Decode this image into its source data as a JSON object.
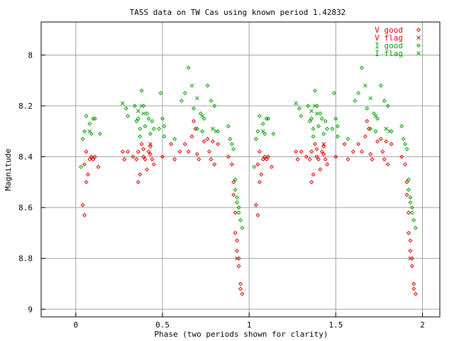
{
  "chart_data": {
    "type": "scatter",
    "title": "TASS data on TW Cas  using known period 1.42832",
    "xlabel": "Phase (two periods shown for clarity)",
    "ylabel": "Magnitude",
    "xlim": [
      -0.2,
      2.1
    ],
    "ylim": [
      7.87,
      9.03
    ],
    "y_inverted": true,
    "grid": true,
    "legend_position": "top-right",
    "x_ticks": [
      "0",
      "0.5",
      "1",
      "1.5",
      "2"
    ],
    "y_ticks": [
      "8",
      "8.2",
      "8.4",
      "8.6",
      "8.8",
      "9"
    ],
    "series": [
      {
        "name": "V good",
        "marker": "diamond",
        "color": "#e00000",
        "points": [
          [
            0.04,
            8.59
          ],
          [
            0.05,
            8.63
          ],
          [
            0.05,
            8.43
          ],
          [
            0.06,
            8.38
          ],
          [
            0.06,
            8.5
          ],
          [
            0.07,
            8.47
          ],
          [
            0.08,
            8.41
          ],
          [
            0.09,
            8.4
          ],
          [
            0.1,
            8.41
          ],
          [
            0.11,
            8.4
          ],
          [
            0.13,
            8.44
          ],
          [
            0.27,
            8.38
          ],
          [
            0.28,
            8.41
          ],
          [
            0.3,
            8.38
          ],
          [
            0.33,
            8.4
          ],
          [
            0.35,
            8.41
          ],
          [
            0.36,
            8.38
          ],
          [
            0.36,
            8.5
          ],
          [
            0.37,
            8.47
          ],
          [
            0.38,
            8.35
          ],
          [
            0.39,
            8.4
          ],
          [
            0.39,
            8.37
          ],
          [
            0.4,
            8.41
          ],
          [
            0.41,
            8.45
          ],
          [
            0.42,
            8.38
          ],
          [
            0.43,
            8.39
          ],
          [
            0.43,
            8.36
          ],
          [
            0.44,
            8.41
          ],
          [
            0.45,
            8.43
          ],
          [
            0.5,
            8.4
          ],
          [
            0.55,
            8.35
          ],
          [
            0.57,
            8.41
          ],
          [
            0.6,
            8.38
          ],
          [
            0.63,
            8.35
          ],
          [
            0.65,
            8.38
          ],
          [
            0.67,
            8.32
          ],
          [
            0.68,
            8.26
          ],
          [
            0.69,
            8.29
          ],
          [
            0.7,
            8.39
          ],
          [
            0.71,
            8.41
          ],
          [
            0.74,
            8.34
          ],
          [
            0.76,
            8.33
          ],
          [
            0.77,
            8.38
          ],
          [
            0.78,
            8.41
          ],
          [
            0.79,
            8.34
          ],
          [
            0.8,
            8.43
          ],
          [
            0.82,
            8.35
          ],
          [
            0.88,
            8.4
          ],
          [
            0.9,
            8.43
          ],
          [
            0.91,
            8.5
          ],
          [
            0.91,
            8.55
          ],
          [
            0.92,
            8.62
          ],
          [
            0.92,
            8.7
          ],
          [
            0.93,
            8.73
          ],
          [
            0.93,
            8.77
          ],
          [
            0.94,
            8.8
          ],
          [
            0.94,
            8.83
          ],
          [
            0.95,
            8.9
          ],
          [
            0.95,
            8.92
          ],
          [
            0.96,
            8.94
          ],
          [
            1.04,
            8.59
          ],
          [
            1.05,
            8.63
          ],
          [
            1.05,
            8.43
          ],
          [
            1.06,
            8.38
          ],
          [
            1.06,
            8.5
          ],
          [
            1.07,
            8.47
          ],
          [
            1.08,
            8.41
          ],
          [
            1.09,
            8.4
          ],
          [
            1.1,
            8.41
          ],
          [
            1.11,
            8.4
          ],
          [
            1.13,
            8.44
          ],
          [
            1.27,
            8.38
          ],
          [
            1.28,
            8.41
          ],
          [
            1.3,
            8.38
          ],
          [
            1.33,
            8.4
          ],
          [
            1.35,
            8.41
          ],
          [
            1.36,
            8.38
          ],
          [
            1.36,
            8.5
          ],
          [
            1.37,
            8.47
          ],
          [
            1.38,
            8.35
          ],
          [
            1.39,
            8.4
          ],
          [
            1.39,
            8.37
          ],
          [
            1.4,
            8.41
          ],
          [
            1.41,
            8.45
          ],
          [
            1.42,
            8.38
          ],
          [
            1.43,
            8.39
          ],
          [
            1.43,
            8.36
          ],
          [
            1.44,
            8.41
          ],
          [
            1.45,
            8.43
          ],
          [
            1.5,
            8.4
          ],
          [
            1.55,
            8.35
          ],
          [
            1.57,
            8.41
          ],
          [
            1.6,
            8.38
          ],
          [
            1.63,
            8.35
          ],
          [
            1.65,
            8.38
          ],
          [
            1.67,
            8.32
          ],
          [
            1.68,
            8.26
          ],
          [
            1.69,
            8.29
          ],
          [
            1.7,
            8.39
          ],
          [
            1.71,
            8.41
          ],
          [
            1.74,
            8.34
          ],
          [
            1.76,
            8.33
          ],
          [
            1.77,
            8.38
          ],
          [
            1.78,
            8.41
          ],
          [
            1.79,
            8.34
          ],
          [
            1.8,
            8.43
          ],
          [
            1.82,
            8.35
          ],
          [
            1.88,
            8.4
          ],
          [
            1.9,
            8.43
          ],
          [
            1.91,
            8.5
          ],
          [
            1.91,
            8.55
          ],
          [
            1.92,
            8.62
          ],
          [
            1.92,
            8.7
          ],
          [
            1.93,
            8.73
          ],
          [
            1.93,
            8.77
          ],
          [
            1.94,
            8.8
          ],
          [
            1.94,
            8.83
          ],
          [
            1.95,
            8.9
          ],
          [
            1.95,
            8.92
          ],
          [
            1.96,
            8.94
          ]
        ]
      },
      {
        "name": "V flag",
        "marker": "cross",
        "color": "#e00000",
        "points": [
          [
            0.43,
            8.35
          ],
          [
            0.93,
            8.8
          ],
          [
            1.43,
            8.35
          ],
          [
            1.93,
            8.8
          ]
        ]
      },
      {
        "name": "I good",
        "marker": "diamond",
        "color": "#00a000",
        "points": [
          [
            0.03,
            8.44
          ],
          [
            0.04,
            8.33
          ],
          [
            0.05,
            8.3
          ],
          [
            0.06,
            8.24
          ],
          [
            0.08,
            8.27
          ],
          [
            0.09,
            8.31
          ],
          [
            0.1,
            8.25
          ],
          [
            0.11,
            8.25
          ],
          [
            0.14,
            8.31
          ],
          [
            0.29,
            8.21
          ],
          [
            0.3,
            8.24
          ],
          [
            0.34,
            8.2
          ],
          [
            0.35,
            8.26
          ],
          [
            0.36,
            8.25
          ],
          [
            0.37,
            8.32
          ],
          [
            0.37,
            8.29
          ],
          [
            0.38,
            8.14
          ],
          [
            0.39,
            8.2
          ],
          [
            0.4,
            8.28
          ],
          [
            0.41,
            8.23
          ],
          [
            0.42,
            8.25
          ],
          [
            0.43,
            8.31
          ],
          [
            0.44,
            8.26
          ],
          [
            0.45,
            8.29
          ],
          [
            0.48,
            8.29
          ],
          [
            0.49,
            8.15
          ],
          [
            0.5,
            8.25
          ],
          [
            0.51,
            8.32
          ],
          [
            0.51,
            8.28
          ],
          [
            0.57,
            8.33
          ],
          [
            0.61,
            8.18
          ],
          [
            0.63,
            8.15
          ],
          [
            0.65,
            8.05
          ],
          [
            0.68,
            8.21
          ],
          [
            0.7,
            8.29
          ],
          [
            0.72,
            8.23
          ],
          [
            0.73,
            8.3
          ],
          [
            0.74,
            8.25
          ],
          [
            0.76,
            8.12
          ],
          [
            0.78,
            8.18
          ],
          [
            0.8,
            8.2
          ],
          [
            0.82,
            8.3
          ],
          [
            0.88,
            8.28
          ],
          [
            0.89,
            8.33
          ],
          [
            0.9,
            8.35
          ],
          [
            0.91,
            8.37
          ],
          [
            0.92,
            8.49
          ],
          [
            0.92,
            8.53
          ],
          [
            0.93,
            8.56
          ],
          [
            0.93,
            8.58
          ],
          [
            0.94,
            8.6
          ],
          [
            0.94,
            8.62
          ],
          [
            0.95,
            8.65
          ],
          [
            0.96,
            8.68
          ],
          [
            1.03,
            8.44
          ],
          [
            1.04,
            8.33
          ],
          [
            1.05,
            8.3
          ],
          [
            1.06,
            8.24
          ],
          [
            1.08,
            8.27
          ],
          [
            1.09,
            8.31
          ],
          [
            1.1,
            8.25
          ],
          [
            1.11,
            8.25
          ],
          [
            1.14,
            8.31
          ],
          [
            1.29,
            8.21
          ],
          [
            1.3,
            8.24
          ],
          [
            1.34,
            8.2
          ],
          [
            1.35,
            8.26
          ],
          [
            1.36,
            8.25
          ],
          [
            1.37,
            8.32
          ],
          [
            1.37,
            8.29
          ],
          [
            1.38,
            8.14
          ],
          [
            1.39,
            8.2
          ],
          [
            1.4,
            8.28
          ],
          [
            1.41,
            8.23
          ],
          [
            1.42,
            8.25
          ],
          [
            1.43,
            8.31
          ],
          [
            1.44,
            8.26
          ],
          [
            1.45,
            8.29
          ],
          [
            1.48,
            8.29
          ],
          [
            1.49,
            8.15
          ],
          [
            1.5,
            8.25
          ],
          [
            1.51,
            8.32
          ],
          [
            1.51,
            8.28
          ],
          [
            1.57,
            8.33
          ],
          [
            1.61,
            8.18
          ],
          [
            1.63,
            8.15
          ],
          [
            1.65,
            8.05
          ],
          [
            1.68,
            8.21
          ],
          [
            1.7,
            8.29
          ],
          [
            1.72,
            8.23
          ],
          [
            1.73,
            8.3
          ],
          [
            1.74,
            8.25
          ],
          [
            1.76,
            8.12
          ],
          [
            1.78,
            8.18
          ],
          [
            1.8,
            8.2
          ],
          [
            1.82,
            8.3
          ],
          [
            1.88,
            8.28
          ],
          [
            1.89,
            8.33
          ],
          [
            1.9,
            8.35
          ],
          [
            1.91,
            8.37
          ],
          [
            1.92,
            8.49
          ],
          [
            1.92,
            8.53
          ],
          [
            1.93,
            8.56
          ],
          [
            1.93,
            8.58
          ],
          [
            1.94,
            8.6
          ],
          [
            1.94,
            8.62
          ],
          [
            1.95,
            8.65
          ],
          [
            1.96,
            8.68
          ]
        ]
      },
      {
        "name": "I flag",
        "marker": "cross",
        "color": "#00a000",
        "points": [
          [
            0.08,
            8.3
          ],
          [
            0.27,
            8.19
          ],
          [
            0.36,
            8.22
          ],
          [
            0.38,
            8.2
          ],
          [
            0.39,
            8.23
          ],
          [
            0.67,
            8.12
          ],
          [
            0.7,
            8.17
          ],
          [
            0.73,
            8.24
          ],
          [
            0.79,
            8.29
          ],
          [
            0.81,
            8.3
          ],
          [
            1.08,
            8.3
          ],
          [
            1.27,
            8.19
          ],
          [
            1.36,
            8.22
          ],
          [
            1.38,
            8.2
          ],
          [
            1.39,
            8.23
          ],
          [
            1.67,
            8.12
          ],
          [
            1.7,
            8.17
          ],
          [
            1.73,
            8.24
          ],
          [
            1.79,
            8.29
          ],
          [
            1.81,
            8.3
          ]
        ]
      }
    ]
  }
}
